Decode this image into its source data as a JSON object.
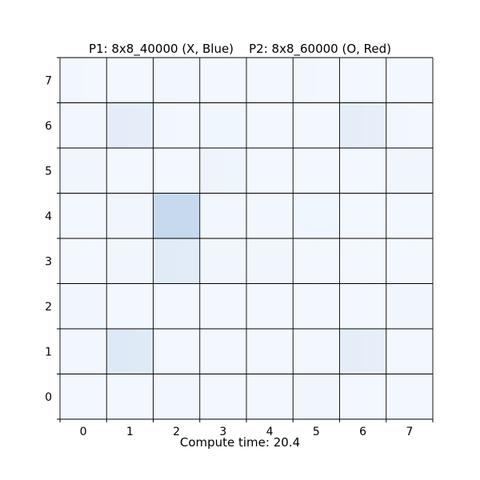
{
  "title": "P1: 8x8_40000 (X, Blue)    P2: 8x8_60000 (O, Red)",
  "footer": {
    "label": "Compute time:",
    "value": "20.4"
  },
  "board": {
    "size": 8,
    "x_labels": [
      "0",
      "1",
      "2",
      "3",
      "4",
      "5",
      "6",
      "7"
    ],
    "y_labels": [
      "0",
      "1",
      "2",
      "3",
      "4",
      "5",
      "6",
      "7"
    ],
    "base_color": "#f4f8fe",
    "highlight_color": "#c6d9ee",
    "row_intensity": [
      [
        0.03,
        0.02,
        0.04,
        0.02,
        0.02,
        0.03,
        0.02,
        0.02
      ],
      [
        0.05,
        0.35,
        0.03,
        0.08,
        0.02,
        0.02,
        0.3,
        0.03
      ],
      [
        0.06,
        0.02,
        0.02,
        0.1,
        0.02,
        0.02,
        0.02,
        0.06
      ],
      [
        0.02,
        0.06,
        1.0,
        0.04,
        0.04,
        0.08,
        0.02,
        0.02
      ],
      [
        0.02,
        0.06,
        0.4,
        0.06,
        0.06,
        0.02,
        0.02,
        0.02
      ],
      [
        0.06,
        0.02,
        0.02,
        0.02,
        0.02,
        0.02,
        0.02,
        0.06
      ],
      [
        0.05,
        0.45,
        0.02,
        0.02,
        0.02,
        0.02,
        0.3,
        0.02
      ],
      [
        0.02,
        0.02,
        0.05,
        0.02,
        0.02,
        0.06,
        0.02,
        0.02
      ]
    ]
  }
}
